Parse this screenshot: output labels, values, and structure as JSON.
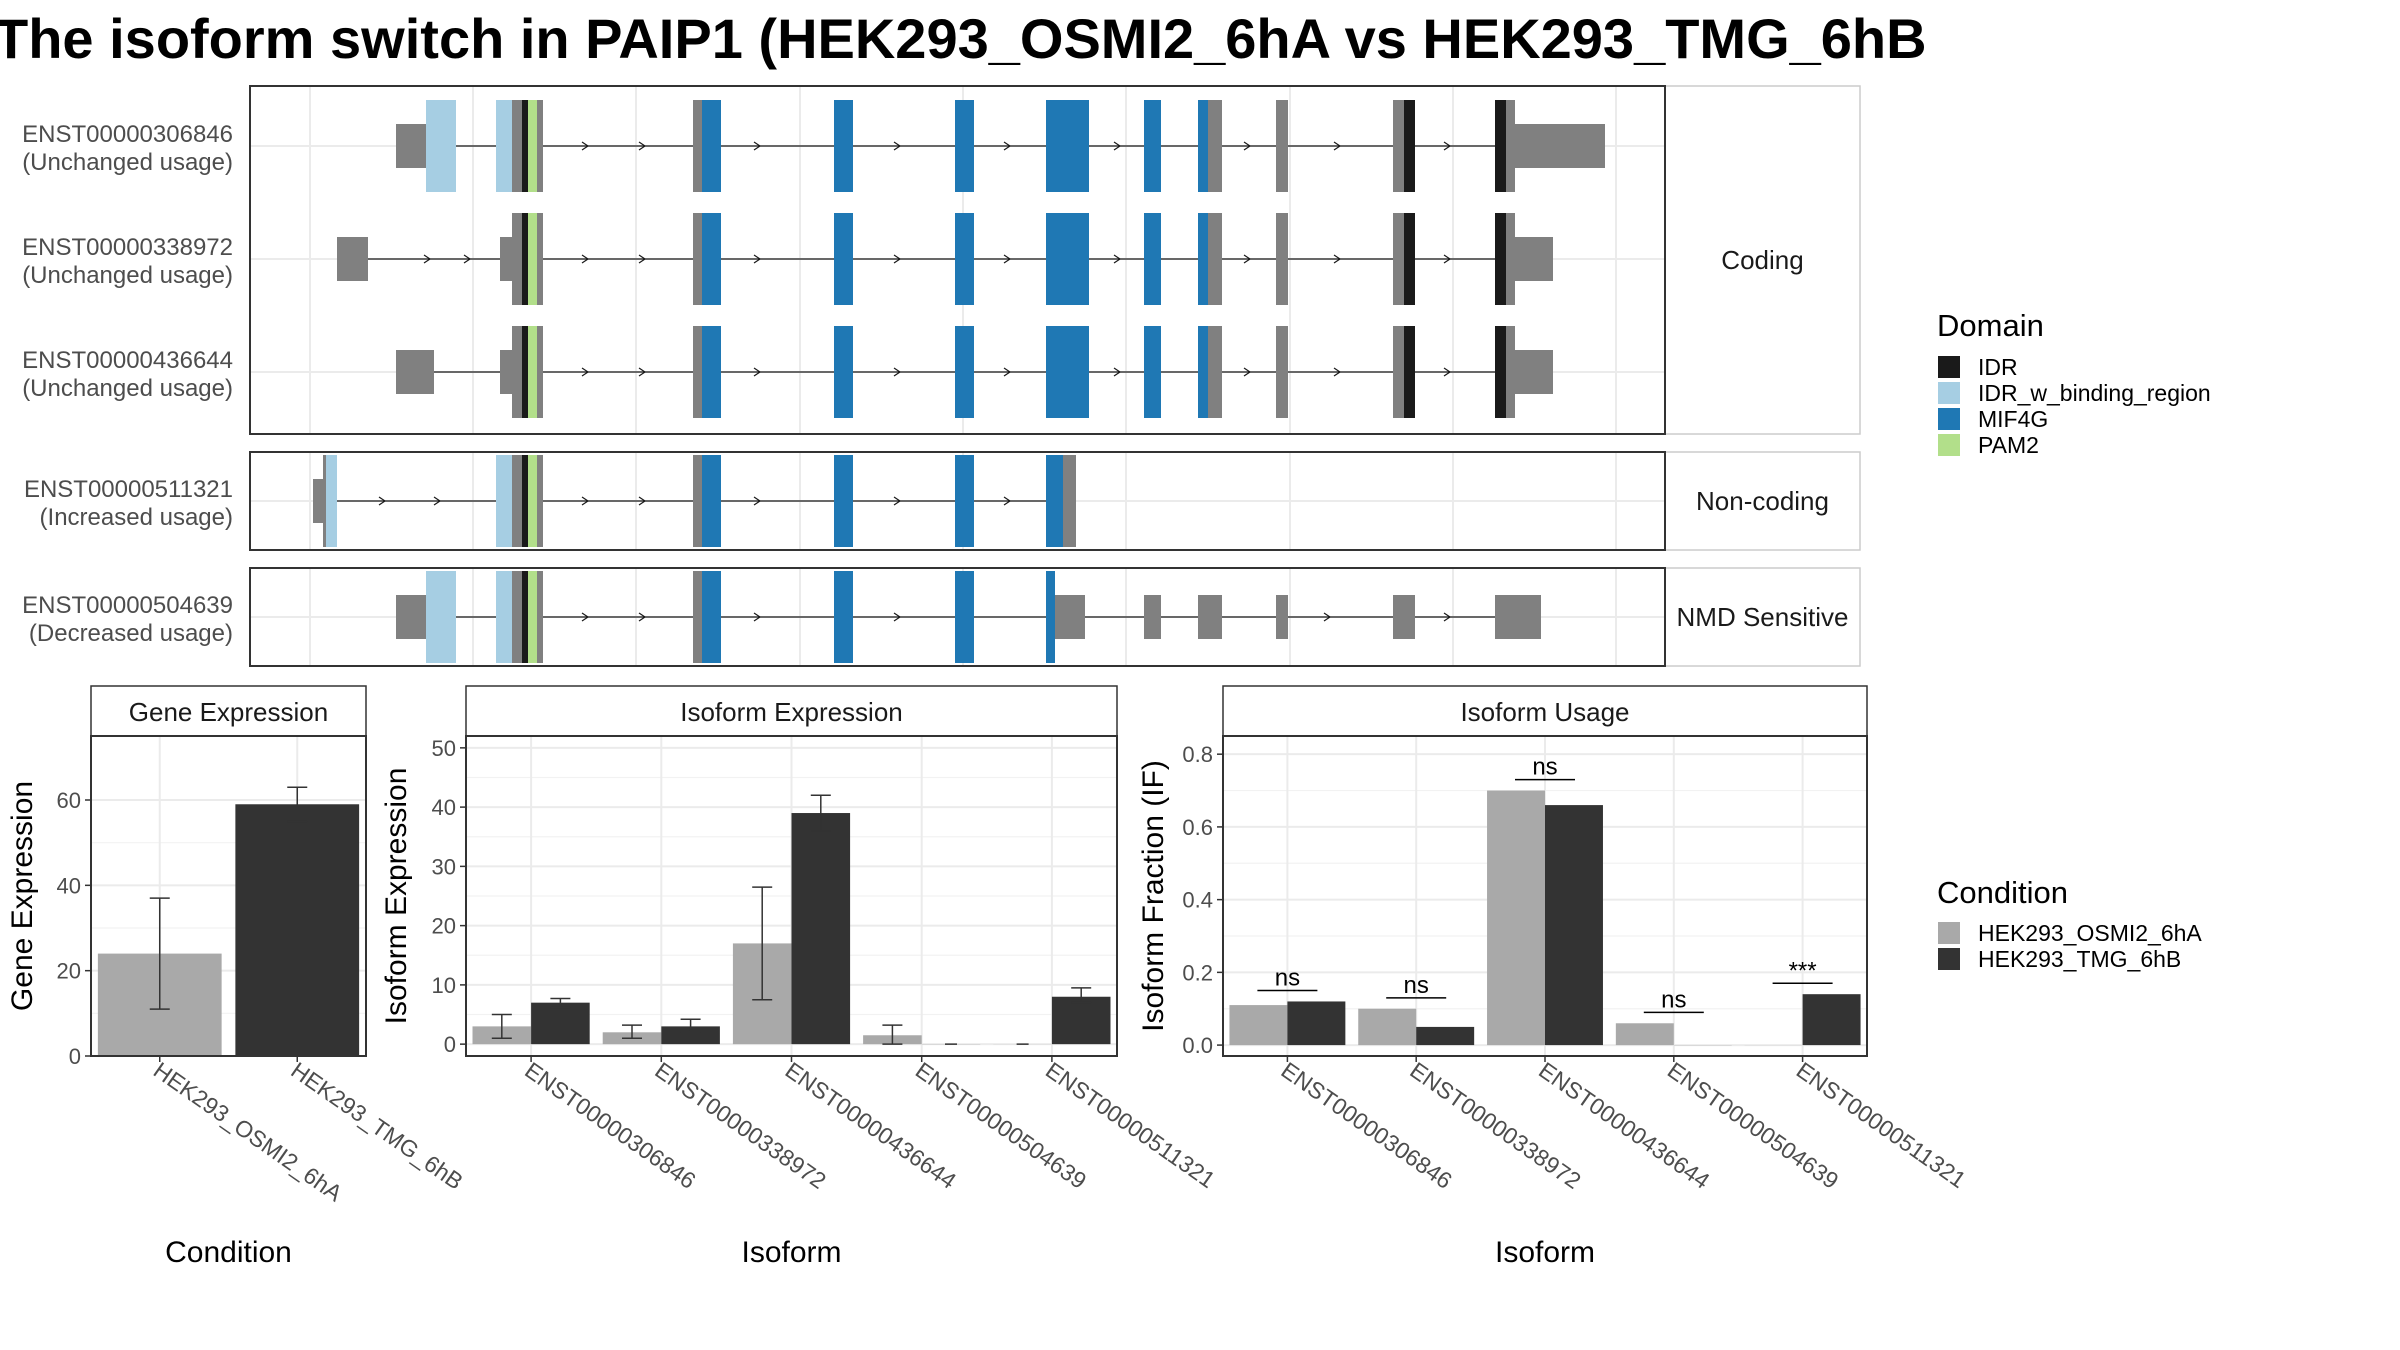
{
  "title": "The isoform switch in PAIP1 (HEK293_OSMI2_6hA vs HEK293_TMG_6hB",
  "colors": {
    "IDR": "#1a1a1a",
    "IDR_w_binding_region": "#a6cee3",
    "MIF4G": "#1f78b4",
    "PAM2": "#b2df8a",
    "exon": "#808080",
    "cond1": "#a9a9a9",
    "cond2": "#333333"
  },
  "structure": {
    "groups": [
      {
        "label": "Coding",
        "isoforms": [
          {
            "id": "ENST00000306846",
            "usage": "(Unchanged usage)"
          },
          {
            "id": "ENST00000338972",
            "usage": "(Unchanged usage)"
          },
          {
            "id": "ENST00000436644",
            "usage": "(Unchanged usage)"
          }
        ]
      },
      {
        "label": "Non-coding",
        "isoforms": [
          {
            "id": "ENST00000511321",
            "usage": "(Increased usage)"
          }
        ]
      },
      {
        "label": "NMD Sensitive",
        "isoforms": [
          {
            "id": "ENST00000504639",
            "usage": "(Decreased usage)"
          }
        ]
      }
    ]
  },
  "legend_domain": {
    "title": "Domain",
    "items": [
      "IDR",
      "IDR_w_binding_region",
      "MIF4G",
      "PAM2"
    ]
  },
  "legend_condition": {
    "title": "Condition",
    "items": [
      "HEK293_OSMI2_6hA",
      "HEK293_TMG_6hB"
    ]
  },
  "chart_data": [
    {
      "type": "bar",
      "title": "Gene Expression",
      "xlabel": "Condition",
      "ylabel": "Gene Expression",
      "categories": [
        "HEK293_OSMI2_6hA",
        "HEK293_TMG_6hB"
      ],
      "values": [
        24,
        59
      ],
      "error_low": [
        11,
        55
      ],
      "error_high": [
        37,
        63
      ],
      "ylim": [
        0,
        75
      ],
      "yticks": [
        0,
        20,
        40,
        60
      ]
    },
    {
      "type": "bar",
      "title": "Isoform Expression",
      "xlabel": "Isoform",
      "ylabel": "Isoform Expression",
      "categories": [
        "ENST00000306846",
        "ENST00000338972",
        "ENST00000436644",
        "ENST00000504639",
        "ENST00000511321"
      ],
      "series": [
        {
          "name": "HEK293_OSMI2_6hA",
          "values": [
            3,
            2,
            17,
            1.5,
            0
          ],
          "error_low": [
            1,
            1,
            7.5,
            0,
            0
          ],
          "error_high": [
            5,
            3.2,
            26.5,
            3.2,
            0
          ]
        },
        {
          "name": "HEK293_TMG_6hB",
          "values": [
            7,
            3,
            39,
            0,
            8
          ],
          "error_low": [
            6.2,
            2,
            36,
            0,
            7
          ],
          "error_high": [
            7.7,
            4.2,
            42,
            0,
            9.5
          ]
        }
      ],
      "ylim": [
        -2,
        52
      ],
      "yticks": [
        0,
        10,
        20,
        30,
        40,
        50
      ]
    },
    {
      "type": "bar",
      "title": "Isoform Usage",
      "xlabel": "Isoform",
      "ylabel": "Isoform Fraction (IF)",
      "categories": [
        "ENST00000306846",
        "ENST00000338972",
        "ENST00000436644",
        "ENST00000504639",
        "ENST00000511321"
      ],
      "series": [
        {
          "name": "HEK293_OSMI2_6hA",
          "values": [
            0.11,
            0.1,
            0.7,
            0.06,
            0
          ]
        },
        {
          "name": "HEK293_TMG_6hB",
          "values": [
            0.12,
            0.05,
            0.66,
            0,
            0.14
          ]
        }
      ],
      "significance": [
        "ns",
        "ns",
        "ns",
        "ns",
        "***"
      ],
      "ylim": [
        -0.03,
        0.85
      ],
      "yticks": [
        "0.0",
        "0.2",
        "0.4",
        "0.6",
        "0.8"
      ]
    }
  ]
}
